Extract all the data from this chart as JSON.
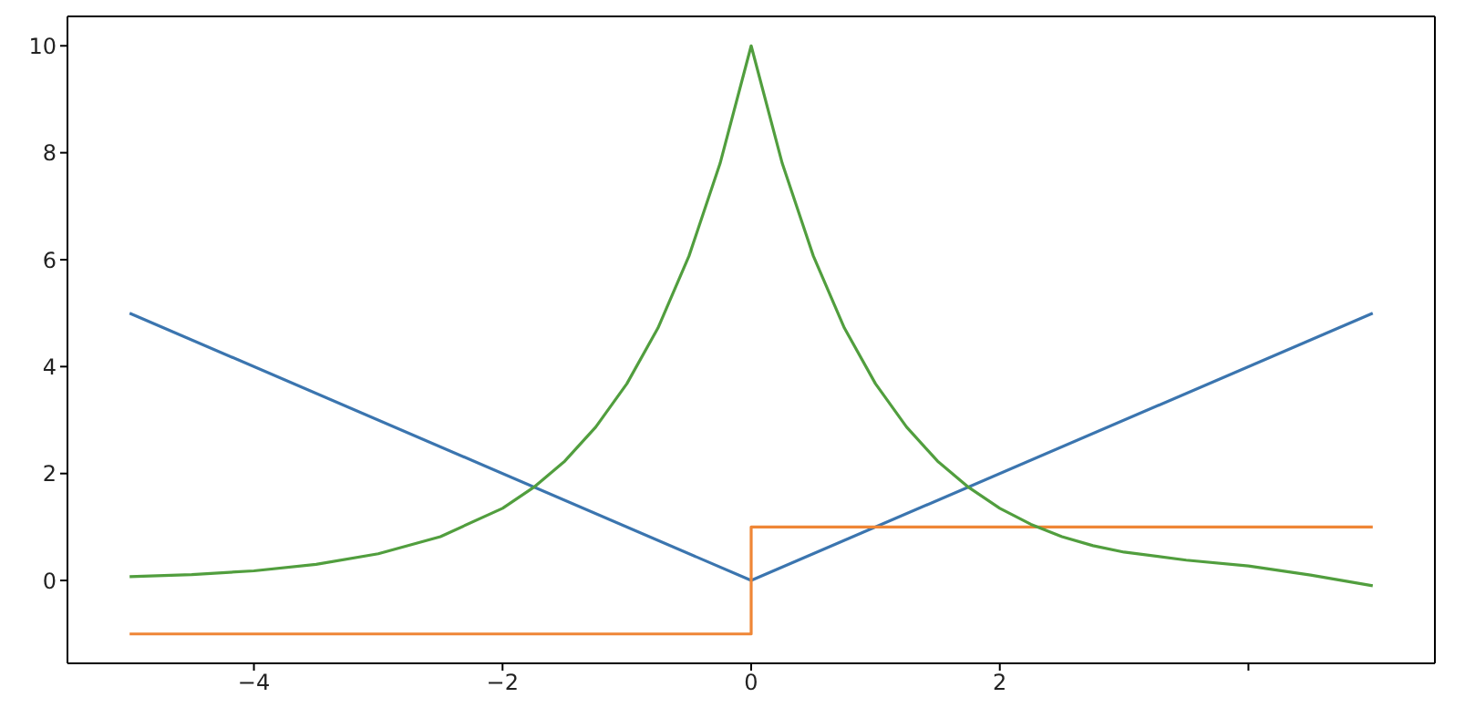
{
  "chart_data": {
    "type": "line",
    "xlim": [
      -5.5,
      5.5
    ],
    "ylim": [
      -1.55,
      10.55
    ],
    "xticks": [
      {
        "value": -4,
        "label": "−4"
      },
      {
        "value": -2,
        "label": "−2"
      },
      0,
      2,
      {
        "value": 4,
        "label": null
      }
    ],
    "yticks": [
      0,
      2,
      4,
      6,
      8,
      10
    ],
    "marker": "none",
    "line_style": "solid",
    "series": [
      {
        "color": "#3b75af",
        "x": [
          -5,
          0,
          5
        ],
        "values": [
          5,
          0,
          5
        ]
      },
      {
        "color": "#ef8636",
        "x": [
          -5,
          0,
          0,
          5
        ],
        "values": [
          -1,
          -1,
          1,
          1
        ]
      },
      {
        "color": "#519e3e",
        "x": [
          -5,
          -4.5,
          -4,
          -3.5,
          -3,
          -2.5,
          -2,
          -1.75,
          -1.5,
          -1.25,
          -1,
          -0.75,
          -0.5,
          -0.25,
          0,
          0.25,
          0.5,
          0.75,
          1,
          1.25,
          1.5,
          1.75,
          2,
          2.25,
          2.5,
          2.75,
          3,
          3.5,
          4,
          4.5,
          5
        ],
        "values": [
          0.07,
          0.11,
          0.18,
          0.3,
          0.5,
          0.82,
          1.35,
          1.74,
          2.23,
          2.87,
          3.68,
          4.72,
          6.07,
          7.8,
          10,
          7.8,
          6.07,
          4.72,
          3.68,
          2.87,
          2.23,
          1.74,
          1.35,
          1.05,
          0.82,
          0.65,
          0.53,
          0.38,
          0.27,
          0.1,
          -0.1
        ]
      }
    ]
  }
}
